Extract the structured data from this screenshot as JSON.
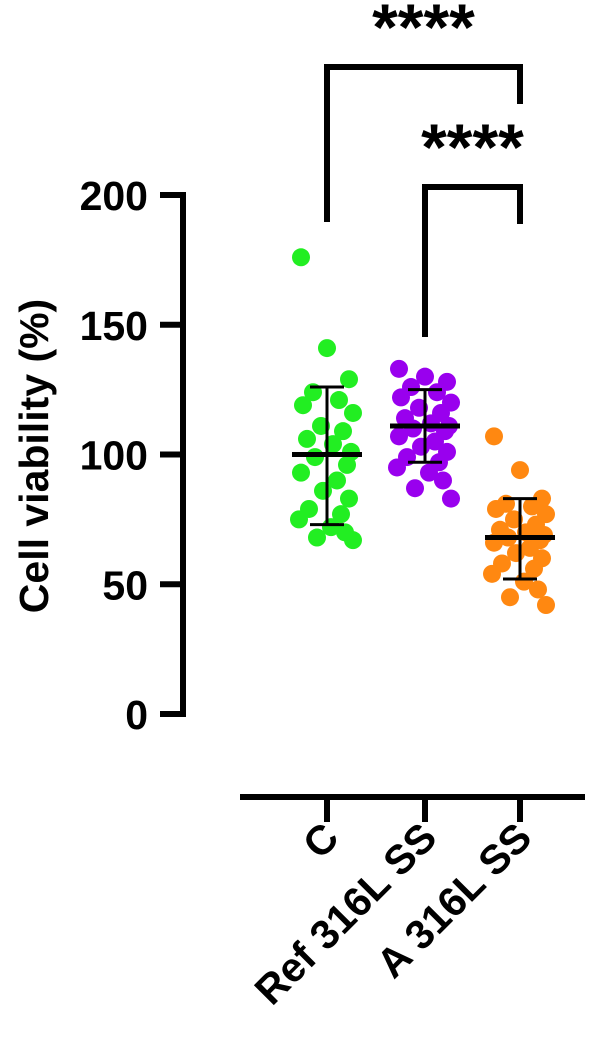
{
  "chart_data": {
    "type": "scatter",
    "ylabel": "Cell viability (%)",
    "ylim": [
      0,
      200
    ],
    "yticks": [
      0,
      50,
      100,
      150,
      200
    ],
    "categories": [
      "C",
      "Ref 316L SS",
      "A 316L SS"
    ],
    "grid": false,
    "legend": "none",
    "series": [
      {
        "color": "#22ee22",
        "mean": 100,
        "sd_low": 73,
        "sd_high": 126,
        "values": [
          176,
          141,
          129,
          124,
          121,
          119,
          116,
          111,
          109,
          106,
          104,
          101,
          99,
          96,
          93,
          90,
          86,
          83,
          79,
          77,
          75,
          72,
          70,
          68,
          67
        ]
      },
      {
        "color": "#9900ee",
        "mean": 111,
        "sd_low": 97,
        "sd_high": 125,
        "values": [
          133,
          130,
          128,
          126,
          124,
          122,
          120,
          118,
          116,
          114,
          112,
          111,
          110,
          109,
          107,
          105,
          103,
          101,
          99,
          97,
          95,
          93,
          90,
          87,
          83
        ]
      },
      {
        "color": "#ff8811",
        "mean": 68,
        "sd_low": 52,
        "sd_high": 83,
        "values": [
          107,
          94,
          83,
          81,
          80,
          79,
          77,
          75,
          73,
          71,
          70,
          69,
          68,
          67,
          66,
          64,
          62,
          60,
          58,
          56,
          54,
          51,
          48,
          45,
          42
        ]
      }
    ],
    "significance": [
      {
        "from": 0,
        "to": 2,
        "label": "****"
      },
      {
        "from": 1,
        "to": 2,
        "label": "****"
      }
    ]
  }
}
